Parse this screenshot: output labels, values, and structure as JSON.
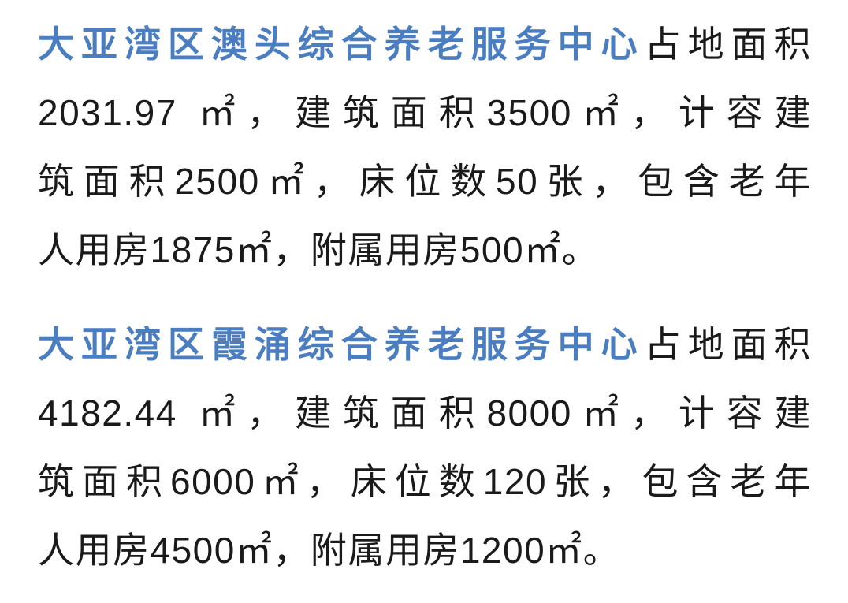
{
  "page": {
    "background_color": "#ffffff",
    "text_color": "#1a1a1a",
    "highlight_color": "#4a7ec0"
  },
  "paragraphs": [
    {
      "name": "大亚湾区澳头综合养老服务中心",
      "line1_highlight": "大亚湾区澳头综合养老服务中心",
      "line1_rest": "占地面积",
      "line2": "2031.97 ㎡，建筑面积3500㎡，计容建",
      "line3": "筑面积2500㎡，床位数50张，包含老年",
      "line4": "人用房1875㎡，附属用房500㎡。",
      "full_text": "大亚湾区澳头综合养老服务中心占地面积2031.97 ㎡，建筑面积3500㎡，计容建筑面积2500㎡，床位数50张，包含老年人用房1875㎡，附属用房500㎡。",
      "facts": {
        "land_area": "2031.97 ㎡",
        "building_area": "3500㎡",
        "capacity_building_area": "2500㎡",
        "beds": "50张",
        "elderly_rooms_area": "1875㎡",
        "auxiliary_rooms_area": "500㎡"
      }
    },
    {
      "name": "大亚湾区霞涌综合养老服务中心",
      "line1_highlight": "大亚湾区霞涌综合养老服务中心",
      "line1_rest": "占地面积",
      "line2": "4182.44 ㎡，建筑面积8000㎡，计容建",
      "line3": "筑面积6000㎡，床位数120张，包含老年",
      "line4": "人用房4500㎡，附属用房1200㎡。",
      "full_text": "大亚湾区霞涌综合养老服务中心占地面积4182.44 ㎡，建筑面积8000㎡，计容建筑面积6000㎡，床位数120张，包含老年人用房4500㎡，附属用房1200㎡。",
      "facts": {
        "land_area": "4182.44 ㎡",
        "building_area": "8000㎡",
        "capacity_building_area": "6000㎡",
        "beds": "120张",
        "elderly_rooms_area": "4500㎡",
        "auxiliary_rooms_area": "1200㎡"
      }
    }
  ]
}
